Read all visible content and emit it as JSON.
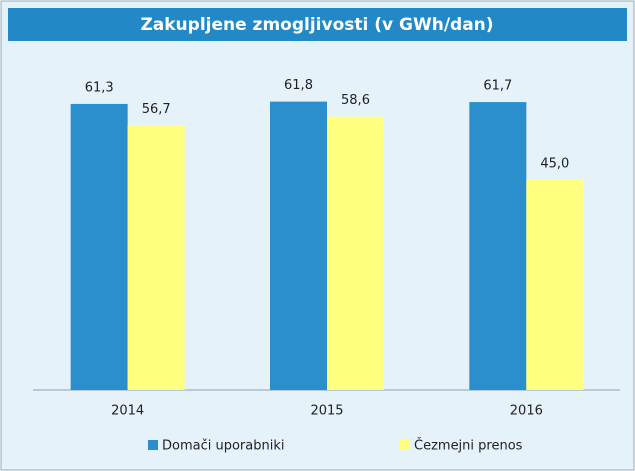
{
  "chart_data": {
    "type": "bar",
    "title": "Zakupljene zmogljivosti (v GWh/dan)",
    "categories": [
      "2014",
      "2015",
      "2016"
    ],
    "series": [
      {
        "name": "Domači uporabniki",
        "color": "#2a8fcc",
        "values": [
          61.3,
          61.8,
          61.7
        ],
        "value_labels": [
          "61,3",
          "61,8",
          "61,7"
        ]
      },
      {
        "name": "Čezmejni prenos",
        "color": "#ffff80",
        "values": [
          56.7,
          58.6,
          45.0
        ],
        "value_labels": [
          "56,7",
          "58,6",
          "45,0"
        ]
      }
    ],
    "ylim": [
      0,
      72
    ],
    "legend": "bottom"
  }
}
